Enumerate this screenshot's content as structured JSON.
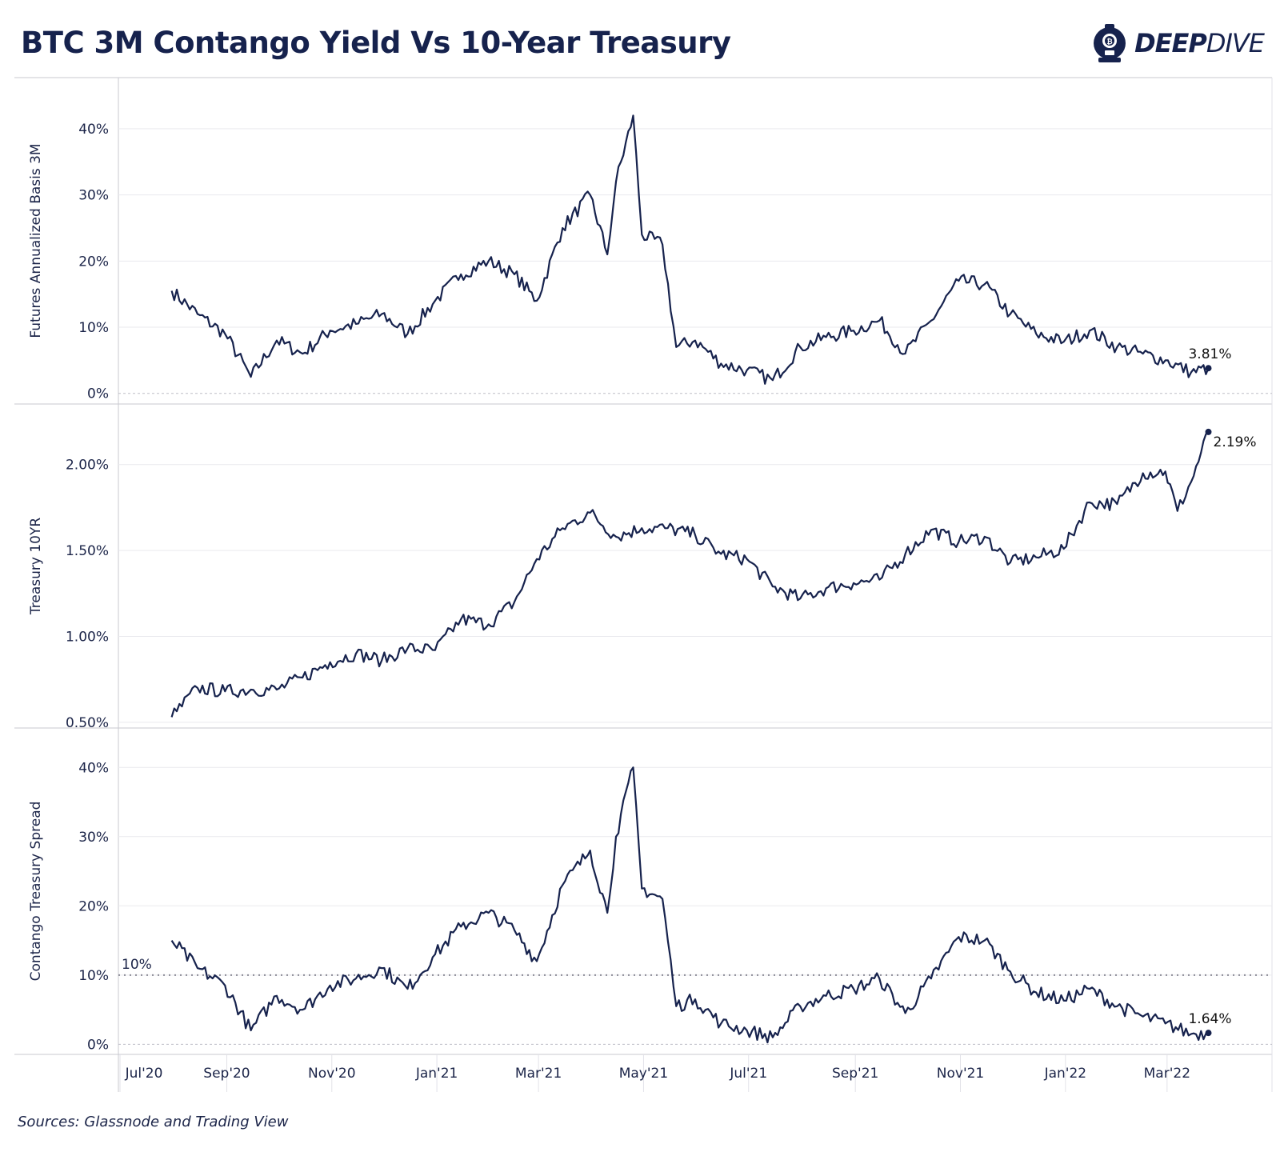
{
  "header": {
    "title": "BTC 3M Contango Yield Vs 10-Year Treasury",
    "brand_bold": "DEEP",
    "brand_light": "DIVE"
  },
  "footer": {
    "source": "Sources: Glassnode and Trading View"
  },
  "colors": {
    "line": "#16224d",
    "grid": "#e9e9ee",
    "axis": "#c8c8cf",
    "text": "#1b2448"
  },
  "chart_data": [
    {
      "type": "line",
      "ylabel": "Futures Annualized Basis 3M",
      "ylim": [
        -1,
        47
      ],
      "yticks": [
        0,
        10,
        20,
        30,
        40
      ],
      "ytick_labels": [
        "0%",
        "10%",
        "20%",
        "30%",
        "40%"
      ],
      "end_label": "3.81%",
      "series": [
        {
          "x": [
            "2020-07-31",
            "2020-08-15",
            "2020-08-31",
            "2020-09-15",
            "2020-09-30",
            "2020-10-15",
            "2020-10-31",
            "2020-11-15",
            "2020-11-30",
            "2020-12-15",
            "2020-12-31",
            "2021-01-15",
            "2021-01-31",
            "2021-02-15",
            "2021-02-28",
            "2021-03-15",
            "2021-03-31",
            "2021-04-10",
            "2021-04-15",
            "2021-04-25",
            "2021-04-30",
            "2021-05-12",
            "2021-05-20",
            "2021-05-31",
            "2021-06-15",
            "2021-06-30",
            "2021-07-15",
            "2021-07-31",
            "2021-08-15",
            "2021-08-31",
            "2021-09-15",
            "2021-09-30",
            "2021-10-15",
            "2021-10-31",
            "2021-11-15",
            "2021-11-30",
            "2021-12-15",
            "2021-12-31",
            "2022-01-15",
            "2022-01-31",
            "2022-02-15",
            "2022-02-28",
            "2022-03-15",
            "2022-03-25"
          ],
          "values": [
            15.5,
            12,
            9,
            2.5,
            8,
            6,
            9.5,
            10.5,
            12,
            9,
            14,
            18,
            20,
            18,
            14,
            25,
            30,
            21,
            32,
            42,
            24,
            22.5,
            7,
            8,
            4.5,
            3.5,
            2,
            7,
            8.5,
            9.5,
            11,
            6,
            11,
            17,
            16.5,
            12,
            9,
            7.8,
            9.5,
            7,
            6,
            5,
            3.2,
            3.81
          ]
        }
      ]
    },
    {
      "type": "line",
      "ylabel": "Treasury 10YR",
      "ylim": [
        0.49,
        2.32
      ],
      "yticks": [
        0.5,
        1.0,
        1.5,
        2.0
      ],
      "ytick_labels": [
        "0.50%",
        "1.00%",
        "1.50%",
        "2.00%"
      ],
      "end_label": "2.19%",
      "series": [
        {
          "x": [
            "2020-07-31",
            "2020-08-15",
            "2020-08-31",
            "2020-09-15",
            "2020-09-30",
            "2020-10-15",
            "2020-10-31",
            "2020-11-15",
            "2020-11-30",
            "2020-12-15",
            "2020-12-31",
            "2021-01-15",
            "2021-01-31",
            "2021-02-15",
            "2021-02-28",
            "2021-03-15",
            "2021-03-31",
            "2021-04-15",
            "2021-04-30",
            "2021-05-15",
            "2021-05-31",
            "2021-06-15",
            "2021-06-30",
            "2021-07-15",
            "2021-07-31",
            "2021-08-15",
            "2021-08-31",
            "2021-09-15",
            "2021-09-30",
            "2021-10-15",
            "2021-10-31",
            "2021-11-15",
            "2021-11-30",
            "2021-12-15",
            "2021-12-31",
            "2022-01-15",
            "2022-01-31",
            "2022-02-15",
            "2022-02-28",
            "2022-03-07",
            "2022-03-15",
            "2022-03-25"
          ],
          "values": [
            0.53,
            0.7,
            0.68,
            0.69,
            0.69,
            0.76,
            0.85,
            0.9,
            0.86,
            0.93,
            0.92,
            1.1,
            1.07,
            1.2,
            1.45,
            1.63,
            1.72,
            1.58,
            1.63,
            1.63,
            1.59,
            1.48,
            1.45,
            1.29,
            1.22,
            1.28,
            1.31,
            1.33,
            1.48,
            1.62,
            1.55,
            1.58,
            1.43,
            1.46,
            1.51,
            1.78,
            1.77,
            1.95,
            1.96,
            1.73,
            1.9,
            2.19
          ]
        }
      ]
    },
    {
      "type": "line",
      "ylabel": "Contango Treasury Spread",
      "ylim": [
        -1,
        45
      ],
      "yticks": [
        0,
        10,
        20,
        30,
        40
      ],
      "ytick_labels": [
        "0%",
        "10%",
        "20%",
        "30%",
        "40%"
      ],
      "end_label": "1.64%",
      "reference_line": {
        "value": 10,
        "label": "10%"
      },
      "series": [
        {
          "x": [
            "2020-07-31",
            "2020-08-15",
            "2020-08-31",
            "2020-09-15",
            "2020-09-30",
            "2020-10-15",
            "2020-10-31",
            "2020-11-15",
            "2020-11-30",
            "2020-12-15",
            "2020-12-31",
            "2021-01-15",
            "2021-01-31",
            "2021-02-15",
            "2021-02-28",
            "2021-03-15",
            "2021-03-31",
            "2021-04-10",
            "2021-04-15",
            "2021-04-25",
            "2021-04-30",
            "2021-05-12",
            "2021-05-20",
            "2021-05-31",
            "2021-06-15",
            "2021-06-30",
            "2021-07-15",
            "2021-07-31",
            "2021-08-15",
            "2021-08-31",
            "2021-09-15",
            "2021-09-30",
            "2021-10-15",
            "2021-10-31",
            "2021-11-15",
            "2021-11-30",
            "2021-12-15",
            "2021-12-31",
            "2022-01-15",
            "2022-01-31",
            "2022-02-15",
            "2022-02-28",
            "2022-03-15",
            "2022-03-25"
          ],
          "values": [
            15,
            11,
            8.5,
            2,
            7,
            5,
            8.5,
            9.5,
            11,
            8,
            13,
            17,
            19,
            16.5,
            12,
            23,
            28,
            19,
            30,
            40,
            22.5,
            21,
            5.5,
            6.5,
            3,
            2,
            1,
            5.5,
            7,
            8,
            9.5,
            4.5,
            9.5,
            15.5,
            15,
            10.5,
            7.5,
            6.3,
            8,
            5.5,
            4,
            3,
            1.5,
            1.64
          ]
        }
      ]
    }
  ],
  "x_axis": {
    "ticks": [
      "2020-07-01",
      "2020-09-01",
      "2020-11-01",
      "2021-01-01",
      "2021-03-01",
      "2021-05-01",
      "2021-07-01",
      "2021-09-01",
      "2021-11-01",
      "2022-01-01",
      "2022-03-01"
    ],
    "labels": [
      "Jul'20",
      "Sep'20",
      "Nov'20",
      "Jan'21",
      "Mar'21",
      "May'21",
      "Jul'21",
      "Sep'21",
      "Nov'21",
      "Jan'22",
      "Mar'22"
    ]
  }
}
